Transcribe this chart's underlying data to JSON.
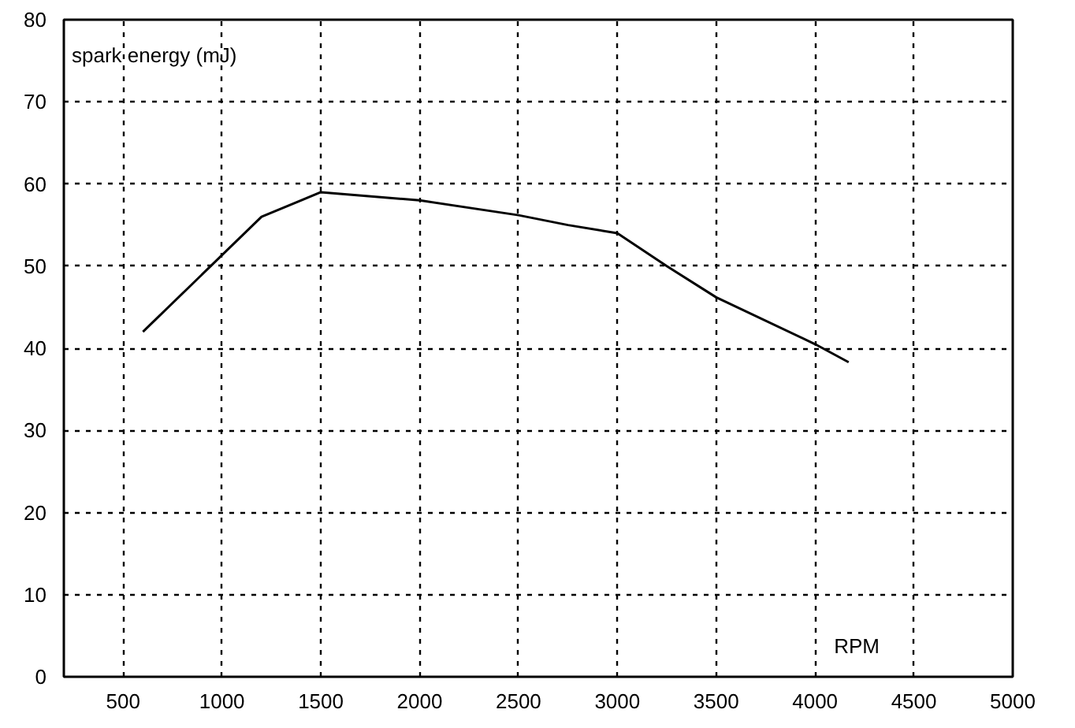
{
  "chart_data": {
    "type": "line",
    "xlabel": "RPM",
    "ylabel": "spark energy (mJ)",
    "x": [
      600,
      1200,
      1500,
      2000,
      2500,
      2750,
      3000,
      3250,
      3500,
      4000,
      4170
    ],
    "series": [
      {
        "color": "#000000",
        "values": [
          42,
          56,
          59,
          58,
          56.2,
          55,
          54,
          50,
          46.2,
          40.5,
          38.3
        ]
      }
    ],
    "xlim": [
      200,
      5000
    ],
    "xticks": [
      500,
      1000,
      1500,
      2000,
      2500,
      3000,
      3500,
      4000,
      4500,
      5000
    ],
    "ylim": [
      0,
      80
    ],
    "yticks": [
      0,
      10,
      20,
      30,
      40,
      50,
      60,
      70,
      80
    ],
    "grid": true,
    "line_style": "solid"
  }
}
